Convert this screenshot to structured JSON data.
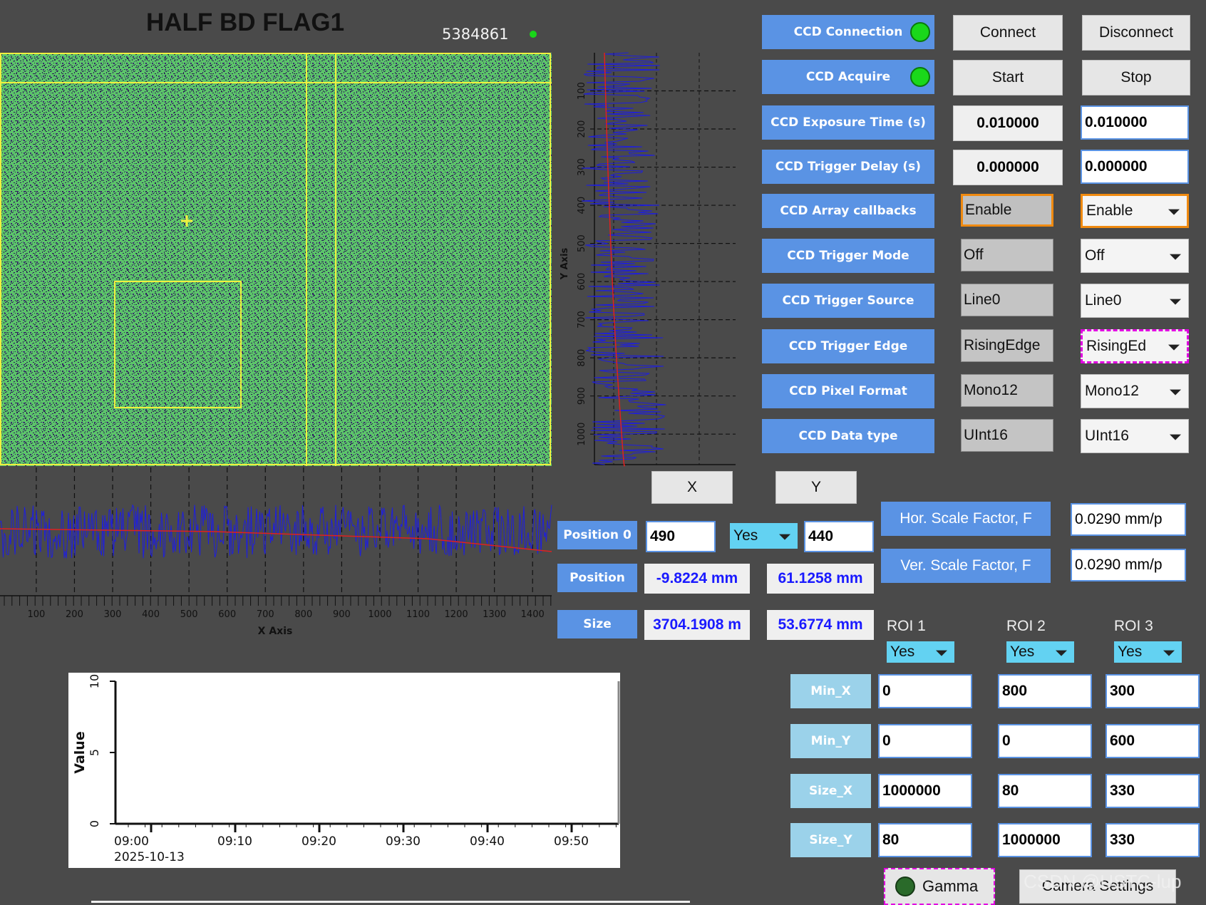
{
  "header": {
    "title": "HALF BD FLAG1",
    "counter": "5384861"
  },
  "controls": [
    {
      "label": "CCD Connection",
      "led": true,
      "btn1": "Connect",
      "btn2": "Disconnect"
    },
    {
      "label": "CCD Acquire",
      "led": true,
      "btn1": "Start",
      "btn2": "Stop"
    },
    {
      "label": "CCD Exposure Time (s)",
      "rb": "0.010000",
      "set": "0.010000"
    },
    {
      "label": "CCD Trigger Delay (s)",
      "rb": "0.000000",
      "set": "0.000000"
    },
    {
      "label": "CCD Array callbacks",
      "rb": "Enable",
      "set": "Enable"
    },
    {
      "label": "CCD Trigger Mode",
      "rb": "Off",
      "set": "Off"
    },
    {
      "label": "CCD Trigger Source",
      "rb": "Line0",
      "set": "Line0"
    },
    {
      "label": "CCD Trigger Edge",
      "rb": "RisingEdge",
      "set": "RisingEd"
    },
    {
      "label": "CCD Pixel Format",
      "rb": "Mono12",
      "set": "Mono12"
    },
    {
      "label": "CCD Data type",
      "rb": "UInt16",
      "set": "UInt16"
    }
  ],
  "xy": {
    "x": "X",
    "y": "Y"
  },
  "position0": {
    "label": "Position 0",
    "x": "490",
    "sel": "Yes",
    "y": "440"
  },
  "position": {
    "label": "Position",
    "x": "-9.8224 mm",
    "y": "61.1258 mm"
  },
  "size": {
    "label": "Size",
    "x": "3704.1908 m",
    "y": "53.6774 mm"
  },
  "hscale": {
    "label": "Hor. Scale Factor, F",
    "value": "0.0290 mm/p"
  },
  "vscale": {
    "label": "Ver. Scale Factor, F",
    "value": "0.0290 mm/p"
  },
  "roi": {
    "headers": [
      "ROI 1",
      "ROI 2",
      "ROI 3"
    ],
    "enabled": [
      "Yes",
      "Yes",
      "Yes"
    ],
    "rows": [
      {
        "label": "Min_X",
        "values": [
          "0",
          "800",
          "300"
        ]
      },
      {
        "label": "Min_Y",
        "values": [
          "0",
          "0",
          "600"
        ]
      },
      {
        "label": "Size_X",
        "values": [
          "1000000",
          "80",
          "330"
        ]
      },
      {
        "label": "Size_Y",
        "values": [
          "80",
          "1000000",
          "330"
        ]
      }
    ]
  },
  "buttons": {
    "gamma": "Gamma",
    "camera_settings": "Camera Settings"
  },
  "watermark": "CSDN @USTC-lup",
  "xprofile": {
    "xlabel": "X Axis",
    "ticks": [
      "100",
      "200",
      "300",
      "400",
      "500",
      "600",
      "700",
      "800",
      "900",
      "1000",
      "1100",
      "1200",
      "1300",
      "1400"
    ]
  },
  "yprofile": {
    "ylabel": "Y Axis",
    "ticks": [
      "100",
      "200",
      "300",
      "400",
      "500",
      "600",
      "700",
      "800",
      "900",
      "1000"
    ]
  },
  "chart_data": {
    "type": "line",
    "ylabel": "Value",
    "ylim": [
      0,
      10
    ],
    "yticks": [
      "0",
      "5",
      "10"
    ],
    "xticks": [
      "09:00",
      "09:10",
      "09:20",
      "09:30",
      "09:40",
      "09:50"
    ],
    "date": "2025-10-13",
    "series": []
  },
  "colors": {
    "accent": "#5a93e4",
    "led": "#1ad81a",
    "profile": "#1e1ee0",
    "fit": "#e02020",
    "image_bg": "#5cbf66",
    "roi": "#f0f040"
  }
}
